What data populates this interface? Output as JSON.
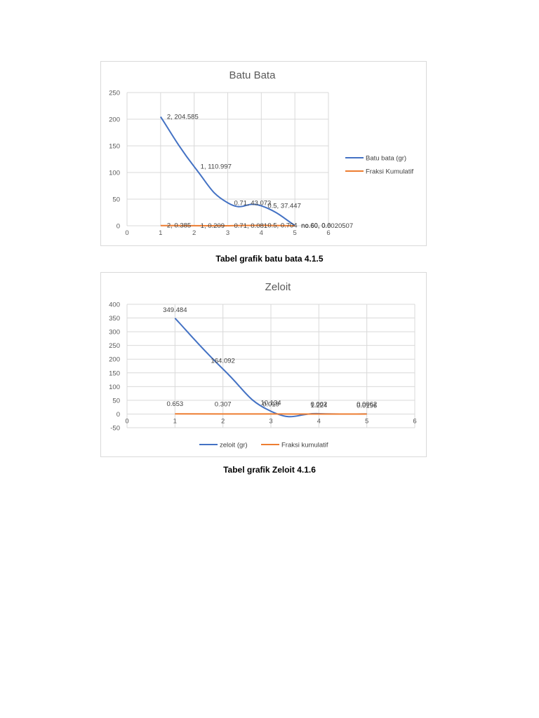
{
  "captions": {
    "chart1": "Tabel grafik batu bata 4.1.5",
    "chart2": "Tabel grafik Zeloit 4.1.6"
  },
  "colors": {
    "blue": "#4472c4",
    "orange": "#ed7d31",
    "grid": "#d9d9d9"
  },
  "chart_data": [
    {
      "type": "scatter",
      "title": "Batu Bata",
      "xlim": [
        0,
        6
      ],
      "ylim": [
        0,
        250
      ],
      "x_ticks": [
        0,
        1,
        2,
        3,
        4,
        5,
        6
      ],
      "y_ticks": [
        0,
        50,
        100,
        150,
        200,
        250
      ],
      "grid": "vertical and horizontal",
      "legend": "right",
      "series": [
        {
          "name": "Batu bata (gr)",
          "color": "#4472c4",
          "x": [
            1,
            2,
            3,
            4,
            5
          ],
          "y": [
            204.585,
            110.997,
            43.073,
            37.447,
            0.6
          ],
          "labels": [
            "2, 204.585",
            "1, 110.997",
            "0.71, 43.073",
            "0.5, 37.447",
            "no.60, 0.6"
          ]
        },
        {
          "name": "Fraksi Kumulatif",
          "color": "#ed7d31",
          "x": [
            1,
            2,
            3,
            4,
            5
          ],
          "y": [
            0.385,
            0.209,
            0.081,
            0.704,
            0.0020507
          ],
          "labels": [
            "2, 0.385",
            "1, 0.209",
            "0.71, 0.081",
            "0.5, 0.704",
            "no.60, 0.0020507"
          ]
        }
      ]
    },
    {
      "type": "scatter",
      "title": "Zeloit",
      "xlim": [
        0,
        6
      ],
      "ylim": [
        -50,
        400
      ],
      "x_ticks": [
        0,
        1,
        2,
        3,
        4,
        5,
        6
      ],
      "y_ticks": [
        -50,
        0,
        50,
        100,
        150,
        200,
        250,
        300,
        350,
        400
      ],
      "grid": "vertical and horizontal",
      "legend": "bottom",
      "series": [
        {
          "name": "zeloit (gr)",
          "color": "#4472c4",
          "x": [
            1,
            2,
            3,
            4,
            5
          ],
          "y": [
            349.484,
            164.092,
            10.134,
            1.224,
            0.0196
          ],
          "labels": [
            "349.484",
            "164.092",
            "10.134",
            "1.224",
            "0.0196"
          ]
        },
        {
          "name": "Fraksi kumulatif",
          "color": "#ed7d31",
          "x": [
            1,
            2,
            3,
            4,
            5
          ],
          "y": [
            0.653,
            0.307,
            0.019,
            0.002,
            0.0062
          ],
          "labels": [
            "0.653",
            "0.307",
            "0.019",
            "0.002",
            "0.0062"
          ]
        }
      ]
    }
  ]
}
